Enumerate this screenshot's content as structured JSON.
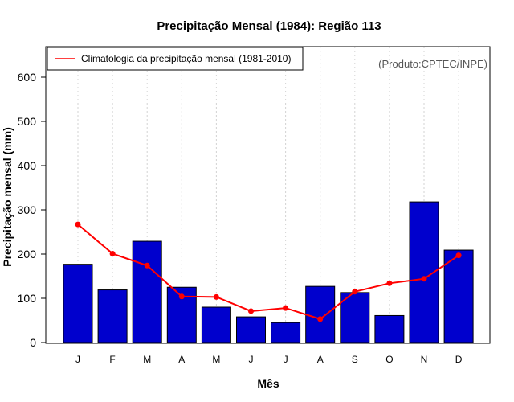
{
  "chart_data": {
    "type": "bar",
    "title": "Precipitação Mensal (1984): Região 113",
    "xlabel": "Mês",
    "ylabel": "Precipitação mensal (mm)",
    "credit": "(Produto:CPTEC/INPE)",
    "categories": [
      "J",
      "F",
      "M",
      "A",
      "M",
      "J",
      "J",
      "A",
      "S",
      "O",
      "N",
      "D"
    ],
    "ylim": [
      0,
      660
    ],
    "yticks": [
      0,
      100,
      200,
      300,
      400,
      500,
      600
    ],
    "grid": true,
    "legend_position": "top-left",
    "series": [
      {
        "name": "Precipitação mensal (1984)",
        "kind": "bar",
        "color": "#0000cd",
        "values": [
          177,
          119,
          229,
          125,
          80,
          58,
          45,
          127,
          113,
          61,
          318,
          209
        ]
      },
      {
        "name": "Climatologia da precipitação mensal (1981-2010)",
        "kind": "line",
        "color": "#ff0000",
        "values": [
          267,
          201,
          174,
          104,
          103,
          71,
          78,
          53,
          115,
          134,
          144,
          197
        ]
      }
    ]
  }
}
